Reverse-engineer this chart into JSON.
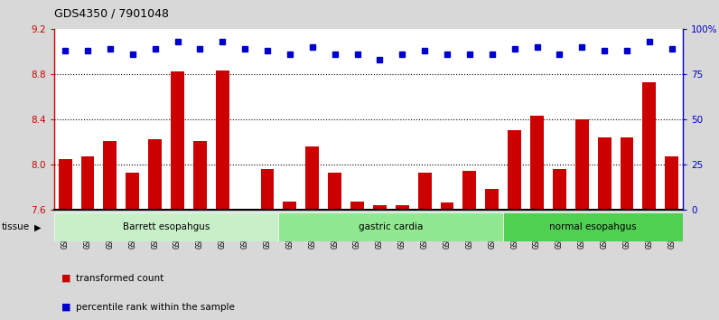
{
  "title": "GDS4350 / 7901048",
  "samples": [
    "GSM851983",
    "GSM851984",
    "GSM851985",
    "GSM851986",
    "GSM851987",
    "GSM851988",
    "GSM851989",
    "GSM851990",
    "GSM851991",
    "GSM851992",
    "GSM852001",
    "GSM852002",
    "GSM852003",
    "GSM852004",
    "GSM852005",
    "GSM852006",
    "GSM852007",
    "GSM852008",
    "GSM852009",
    "GSM852010",
    "GSM851993",
    "GSM851994",
    "GSM851995",
    "GSM851996",
    "GSM851997",
    "GSM851998",
    "GSM851999",
    "GSM852000"
  ],
  "bar_values": [
    8.05,
    8.07,
    8.21,
    7.93,
    8.22,
    8.82,
    8.21,
    8.83,
    7.6,
    7.96,
    7.67,
    8.16,
    7.93,
    7.67,
    7.64,
    7.64,
    7.93,
    7.66,
    7.94,
    7.78,
    8.3,
    8.43,
    7.96,
    8.4,
    8.24,
    8.24,
    8.73,
    8.07
  ],
  "dot_values": [
    88,
    88,
    89,
    86,
    89,
    93,
    89,
    93,
    89,
    88,
    86,
    90,
    86,
    86,
    83,
    86,
    88,
    86,
    86,
    86,
    89,
    90,
    86,
    90,
    88,
    88,
    93,
    89
  ],
  "groups": [
    {
      "label": "Barrett esopahgus",
      "start": 0,
      "end": 10,
      "color": "#c8f0c8"
    },
    {
      "label": "gastric cardia",
      "start": 10,
      "end": 20,
      "color": "#90e890"
    },
    {
      "label": "normal esopahgus",
      "start": 20,
      "end": 28,
      "color": "#50d050"
    }
  ],
  "ylim_left": [
    7.6,
    9.2
  ],
  "ylim_right": [
    0,
    100
  ],
  "yticks_left": [
    7.6,
    8.0,
    8.4,
    8.8,
    9.2
  ],
  "yticks_right": [
    0,
    25,
    50,
    75,
    100
  ],
  "bar_color": "#cc0000",
  "dot_color": "#0000cc",
  "background_color": "#d8d8d8",
  "plot_bg_color": "#ffffff",
  "grid_lines": [
    8.0,
    8.4,
    8.8
  ],
  "legend_items": [
    {
      "label": "transformed count",
      "color": "#cc0000"
    },
    {
      "label": "percentile rank within the sample",
      "color": "#0000cc"
    }
  ]
}
